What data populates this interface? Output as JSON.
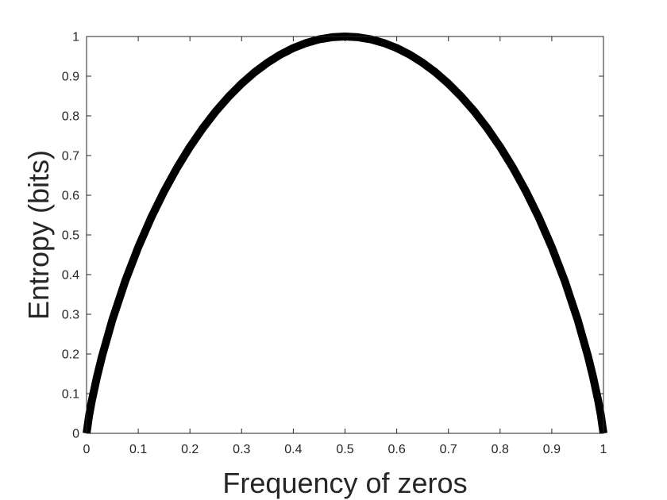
{
  "chart_data": {
    "type": "line",
    "title": "",
    "xlabel": "Frequency of zeros",
    "ylabel": "Entropy (bits)",
    "xlim": [
      0,
      1
    ],
    "ylim": [
      0,
      1
    ],
    "xticks": [
      0,
      0.1,
      0.2,
      0.3,
      0.4,
      0.5,
      0.6,
      0.7,
      0.8,
      0.9,
      1
    ],
    "xtick_labels": [
      "0",
      "0.1",
      "0.2",
      "0.3",
      "0.4",
      "0.5",
      "0.6",
      "0.7",
      "0.8",
      "0.9",
      "1"
    ],
    "yticks": [
      0,
      0.1,
      0.2,
      0.3,
      0.4,
      0.5,
      0.6,
      0.7,
      0.8,
      0.9,
      1
    ],
    "ytick_labels": [
      "0",
      "0.1",
      "0.2",
      "0.3",
      "0.4",
      "0.5",
      "0.6",
      "0.7",
      "0.8",
      "0.9",
      "1"
    ],
    "grid": false,
    "legend": "none",
    "line_color": "#000000",
    "axis_color": "#262626",
    "series": [
      {
        "x": [
          0,
          0.005,
          0.01,
          0.02,
          0.03,
          0.05,
          0.075,
          0.1,
          0.125,
          0.15,
          0.175,
          0.2,
          0.225,
          0.25,
          0.275,
          0.3,
          0.325,
          0.35,
          0.375,
          0.4,
          0.425,
          0.45,
          0.475,
          0.5,
          0.525,
          0.55,
          0.575,
          0.6,
          0.625,
          0.65,
          0.675,
          0.7,
          0.725,
          0.75,
          0.775,
          0.8,
          0.825,
          0.85,
          0.875,
          0.9,
          0.925,
          0.95,
          0.97,
          0.98,
          0.99,
          0.995,
          1
        ],
        "y": [
          0,
          0.0454,
          0.0808,
          0.1414,
          0.1944,
          0.2864,
          0.3843,
          0.469,
          0.5436,
          0.6098,
          0.669,
          0.7219,
          0.7692,
          0.8113,
          0.8485,
          0.8813,
          0.9097,
          0.9341,
          0.9544,
          0.971,
          0.9837,
          0.9928,
          0.9982,
          1,
          0.9982,
          0.9928,
          0.9837,
          0.971,
          0.9544,
          0.9341,
          0.9097,
          0.8813,
          0.8485,
          0.8113,
          0.7692,
          0.7219,
          0.669,
          0.6098,
          0.5436,
          0.469,
          0.3843,
          0.2864,
          0.1944,
          0.1414,
          0.0808,
          0.0454,
          0
        ]
      }
    ]
  }
}
